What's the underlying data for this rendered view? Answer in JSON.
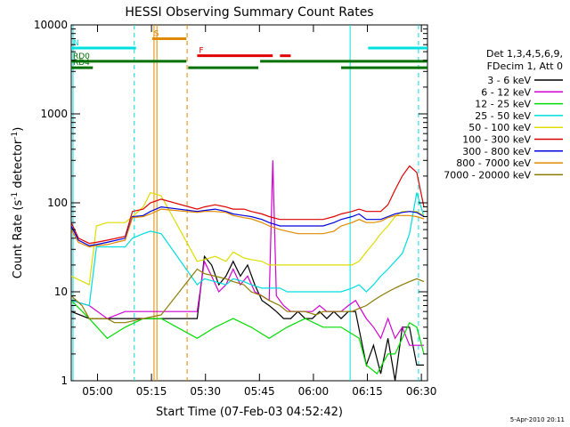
{
  "chart_data": {
    "type": "line",
    "title": "HESSI Observing Summary Count Rates",
    "xlabel": "Start Time (07-Feb-03 04:52:42)",
    "ylabel_main": "Count Rate (s",
    "ylabel_sup1": "-1",
    "ylabel_mid": " detector",
    "ylabel_sup2": "-1",
    "ylabel_end": ")",
    "yscale": "log",
    "x_unit": "minutes after 04:52:42",
    "xlim": [
      0,
      99
    ],
    "ylim": [
      1,
      10000
    ],
    "x_ticks": [
      {
        "x": 7.3,
        "label": "05:00"
      },
      {
        "x": 22.3,
        "label": "05:15"
      },
      {
        "x": 37.3,
        "label": "05:30"
      },
      {
        "x": 52.3,
        "label": "05:45"
      },
      {
        "x": 67.3,
        "label": "06:00"
      },
      {
        "x": 82.3,
        "label": "06:15"
      },
      {
        "x": 97.3,
        "label": "06:30"
      }
    ],
    "y_ticks": [
      {
        "y": 1,
        "label": "1"
      },
      {
        "y": 10,
        "label": "10"
      },
      {
        "y": 100,
        "label": "100"
      },
      {
        "y": 1000,
        "label": "1000"
      },
      {
        "y": 10000,
        "label": "10000"
      }
    ],
    "legend_header": [
      "Det 1,3,4,5,6,9,",
      "FDecim 1, Att 0"
    ],
    "timestamp": "5-Apr-2010 20:11",
    "series": [
      {
        "name": "3 - 6 keV",
        "color": "#000000",
        "x": [
          0,
          5,
          10,
          15,
          20,
          25,
          35,
          37,
          39,
          41,
          43,
          45,
          47,
          49,
          51,
          53,
          55,
          57,
          59,
          61,
          63,
          65,
          67,
          69,
          71,
          73,
          75,
          77,
          79,
          82,
          84,
          86,
          88,
          90,
          92,
          94,
          96,
          98
        ],
        "y": [
          6,
          5,
          5,
          5,
          5,
          5,
          5,
          25,
          20,
          12,
          15,
          22,
          15,
          20,
          12,
          8,
          7,
          6,
          5,
          5,
          6,
          5,
          5,
          6,
          5,
          6,
          5,
          6,
          6,
          1.5,
          2.5,
          1.2,
          3,
          1,
          4,
          4,
          1.5,
          1.5
        ]
      },
      {
        "name": "6 - 12 keV",
        "color": "#d000d0",
        "x": [
          0,
          5,
          10,
          15,
          20,
          25,
          35,
          37,
          39,
          41,
          43,
          45,
          47,
          49,
          51,
          53,
          55,
          56,
          57,
          59,
          61,
          63,
          65,
          67,
          69,
          71,
          73,
          75,
          77,
          79,
          82,
          84,
          86,
          88,
          90,
          92,
          94,
          96,
          98
        ],
        "y": [
          8,
          7,
          5,
          6,
          6,
          6,
          6,
          22,
          15,
          10,
          12,
          18,
          12,
          15,
          10,
          9,
          8,
          300,
          9,
          7,
          6,
          6,
          6,
          6,
          7,
          6,
          6,
          6,
          7,
          8,
          5,
          4,
          3,
          5,
          3,
          4,
          2.5,
          2.5,
          2.5
        ]
      },
      {
        "name": "12 - 25 keV",
        "color": "#00dd00",
        "x": [
          0,
          5,
          10,
          15,
          20,
          25,
          35,
          40,
          45,
          50,
          55,
          60,
          65,
          70,
          75,
          80,
          82,
          85,
          88,
          90,
          92,
          94,
          96,
          98
        ],
        "y": [
          8,
          5,
          3,
          4,
          5,
          5,
          3,
          4,
          5,
          4,
          3,
          4,
          5,
          4,
          4,
          3,
          1.5,
          1.2,
          2,
          2,
          3,
          4.5,
          4,
          2
        ]
      },
      {
        "name": "25 - 50 keV",
        "color": "#00dddd",
        "x": [
          0,
          5,
          7,
          10,
          15,
          17,
          20,
          22,
          25,
          35,
          37,
          40,
          43,
          45,
          48,
          50,
          53,
          55,
          58,
          60,
          63,
          65,
          68,
          70,
          73,
          75,
          78,
          80,
          82,
          84,
          86,
          88,
          90,
          92,
          94,
          96,
          98
        ],
        "y": [
          8,
          7,
          32,
          32,
          32,
          40,
          45,
          48,
          45,
          12,
          14,
          13,
          12,
          14,
          13,
          12,
          11,
          11,
          11,
          10,
          10,
          10,
          10,
          10,
          10,
          10,
          11,
          12,
          10,
          12,
          15,
          18,
          22,
          27,
          45,
          130,
          70
        ]
      },
      {
        "name": "50 - 100 keV",
        "color": "#dddd00",
        "x": [
          0,
          5,
          7,
          10,
          15,
          17,
          20,
          22,
          25,
          35,
          37,
          40,
          43,
          45,
          48,
          50,
          53,
          55,
          58,
          60,
          63,
          65,
          68,
          70,
          73,
          75,
          78,
          80,
          82,
          84,
          86,
          88,
          90,
          92,
          94,
          96,
          98
        ],
        "y": [
          15,
          12,
          55,
          60,
          60,
          70,
          90,
          130,
          120,
          22,
          23,
          25,
          22,
          28,
          24,
          23,
          22,
          20,
          20,
          20,
          20,
          20,
          20,
          20,
          20,
          20,
          20,
          22,
          28,
          35,
          45,
          55,
          70,
          80,
          80,
          80,
          72
        ]
      },
      {
        "name": "100 - 300 keV",
        "color": "#dd0000",
        "x": [
          0,
          2,
          5,
          7,
          10,
          15,
          17,
          20,
          22,
          25,
          35,
          37,
          40,
          43,
          45,
          48,
          50,
          53,
          55,
          58,
          60,
          63,
          65,
          68,
          70,
          73,
          75,
          78,
          80,
          82,
          84,
          86,
          88,
          90,
          92,
          94,
          96,
          98
        ],
        "y": [
          60,
          40,
          35,
          36,
          38,
          42,
          80,
          85,
          100,
          110,
          85,
          90,
          95,
          90,
          85,
          85,
          80,
          75,
          70,
          65,
          65,
          65,
          65,
          65,
          65,
          70,
          75,
          80,
          85,
          80,
          80,
          80,
          95,
          140,
          200,
          260,
          220,
          90
        ]
      },
      {
        "name": "300 - 800 keV",
        "color": "#0000dd",
        "x": [
          0,
          2,
          5,
          7,
          10,
          15,
          17,
          20,
          22,
          25,
          35,
          37,
          40,
          43,
          45,
          48,
          50,
          53,
          55,
          58,
          60,
          63,
          65,
          68,
          70,
          73,
          75,
          78,
          80,
          82,
          84,
          86,
          88,
          90,
          92,
          94,
          96,
          98
        ],
        "y": [
          55,
          38,
          33,
          34,
          36,
          40,
          70,
          72,
          80,
          90,
          80,
          82,
          85,
          80,
          75,
          72,
          70,
          65,
          60,
          55,
          55,
          55,
          55,
          55,
          55,
          60,
          65,
          70,
          75,
          65,
          65,
          65,
          70,
          75,
          78,
          80,
          78,
          70
        ]
      },
      {
        "name": "800 - 7000 keV",
        "color": "#e08a00",
        "x": [
          0,
          2,
          5,
          7,
          10,
          15,
          17,
          20,
          22,
          25,
          35,
          37,
          40,
          43,
          45,
          48,
          50,
          53,
          55,
          58,
          60,
          63,
          65,
          68,
          70,
          73,
          75,
          78,
          80,
          82,
          84,
          86,
          88,
          90,
          92,
          94,
          96,
          98
        ],
        "y": [
          50,
          36,
          32,
          33,
          34,
          38,
          68,
          70,
          75,
          85,
          78,
          80,
          80,
          78,
          72,
          68,
          66,
          60,
          55,
          50,
          48,
          45,
          45,
          45,
          45,
          48,
          55,
          60,
          65,
          60,
          60,
          62,
          68,
          72,
          72,
          72,
          70,
          66
        ]
      },
      {
        "name": "7000 - 20000 keV",
        "color": "#8b7a00",
        "x": [
          0,
          3,
          5,
          8,
          10,
          12,
          15,
          20,
          25,
          35,
          37,
          40,
          43,
          45,
          48,
          50,
          53,
          55,
          58,
          60,
          63,
          65,
          68,
          70,
          73,
          75,
          78,
          80,
          82,
          84,
          86,
          88,
          90,
          92,
          94,
          96,
          98
        ],
        "y": [
          9,
          7,
          5,
          5,
          5,
          4.5,
          4.5,
          5,
          5.5,
          18,
          16,
          15,
          14,
          13,
          12,
          10,
          9,
          8,
          7,
          6,
          6,
          6,
          5.5,
          6,
          6,
          6,
          6,
          6.5,
          7,
          8,
          9,
          10,
          11,
          12,
          13,
          14,
          13
        ]
      }
    ],
    "annotation_bars": [
      {
        "label": "N",
        "color": "#00e0e0",
        "level": 5500,
        "segments": [
          [
            0,
            18
          ],
          [
            82.5,
            99
          ]
        ]
      },
      {
        "label": "S",
        "color": "#e08a00",
        "level": 7000,
        "segments": [
          [
            22.5,
            32
          ]
        ]
      },
      {
        "label": "F",
        "color": "#e00000",
        "level": 4500,
        "segments": [
          [
            35,
            56
          ],
          [
            58,
            61
          ]
        ]
      },
      {
        "label": "RD0",
        "color": "#007000",
        "level": 3900,
        "segments": [
          [
            0,
            32
          ],
          [
            52.5,
            99
          ]
        ]
      },
      {
        "label": "RD4",
        "color": "#007000",
        "level": 3300,
        "segments": [
          [
            0,
            6
          ],
          [
            32.5,
            52
          ],
          [
            75,
            99
          ]
        ]
      }
    ],
    "vertical_lines": [
      {
        "x": 0.5,
        "color": "#00e0e0",
        "style": "solid"
      },
      {
        "x": 17.5,
        "color": "#00e0e0",
        "style": "dashed"
      },
      {
        "x": 23,
        "color": "#e08a00",
        "style": "solid"
      },
      {
        "x": 23.8,
        "color": "#e08a00",
        "style": "solid"
      },
      {
        "x": 32.2,
        "color": "#e08a00",
        "style": "dashed"
      },
      {
        "x": 77.5,
        "color": "#00e0e0",
        "style": "solid"
      },
      {
        "x": 96.5,
        "color": "#00e0e0",
        "style": "dashed"
      }
    ]
  }
}
